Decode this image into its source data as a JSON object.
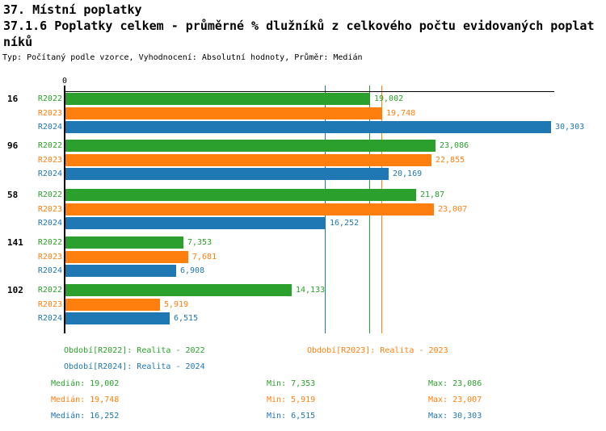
{
  "header": {
    "title_line1": "37. Místní poplatky",
    "title_line2": "37.1.6 Poplatky celkem - průměrné % dlužníků z celkového počtu evidovaných poplatníků",
    "subtitle": "Typ: Počítaný podle vzorce, Vyhodnocení: Absolutní hodnoty, Průměr: Medián"
  },
  "colors": {
    "series_green": "#2ca02c",
    "series_orange": "#ff7f0e",
    "series_blue": "#1f77b4",
    "axis": "#000000"
  },
  "chart_data": {
    "type": "bar",
    "orientation": "horizontal",
    "title": "37.1.6 Poplatky celkem - průměrné % dlužníků z celkového počtu evidovaných poplatníků",
    "series": [
      "R2022",
      "R2023",
      "R2024"
    ],
    "series_colors": [
      "#2ca02c",
      "#ff7f0e",
      "#1f77b4"
    ],
    "categories": [
      "16",
      "96",
      "58",
      "141",
      "102"
    ],
    "axis": {
      "origin_label": "0",
      "min": 0,
      "max": 30.56,
      "grid": false
    },
    "groups": [
      {
        "category": "16",
        "bars": [
          {
            "series": "R2022",
            "value": 19.002,
            "label": "19,002"
          },
          {
            "series": "R2023",
            "value": 19.748,
            "label": "19,748"
          },
          {
            "series": "R2024",
            "value": 30.303,
            "label": "30,303"
          }
        ]
      },
      {
        "category": "96",
        "bars": [
          {
            "series": "R2022",
            "value": 23.086,
            "label": "23,086"
          },
          {
            "series": "R2023",
            "value": 22.855,
            "label": "22,855"
          },
          {
            "series": "R2024",
            "value": 20.169,
            "label": "20,169"
          }
        ]
      },
      {
        "category": "58",
        "bars": [
          {
            "series": "R2022",
            "value": 21.87,
            "label": "21,87"
          },
          {
            "series": "R2023",
            "value": 23.007,
            "label": "23,007"
          },
          {
            "series": "R2024",
            "value": 16.252,
            "label": "16,252"
          }
        ]
      },
      {
        "category": "141",
        "bars": [
          {
            "series": "R2022",
            "value": 7.353,
            "label": "7,353"
          },
          {
            "series": "R2023",
            "value": 7.681,
            "label": "7,681"
          },
          {
            "series": "R2024",
            "value": 6.908,
            "label": "6,908"
          }
        ]
      },
      {
        "category": "102",
        "bars": [
          {
            "series": "R2022",
            "value": 14.133,
            "label": "14,133"
          },
          {
            "series": "R2023",
            "value": 5.919,
            "label": "5,919"
          },
          {
            "series": "R2024",
            "value": 6.515,
            "label": "6,515"
          }
        ]
      }
    ],
    "median_lines": [
      {
        "series": "R2022",
        "value": 19.002,
        "color": "#2ca02c"
      },
      {
        "series": "R2023",
        "value": 19.748,
        "color": "#ff7f0e"
      },
      {
        "series": "R2024",
        "value": 16.252,
        "color": "#1f77b4"
      }
    ]
  },
  "legend": {
    "items": [
      {
        "label": "Období[R2022]: Realita - 2022",
        "color": "#2ca02c",
        "row": 0,
        "col": 0
      },
      {
        "label": "Období[R2023]: Realita - 2023",
        "color": "#ff7f0e",
        "row": 0,
        "col": 1
      },
      {
        "label": "Období[R2024]: Realita - 2024",
        "color": "#1f77b4",
        "row": 1,
        "col": 0
      }
    ]
  },
  "stats": {
    "rows": [
      {
        "series": "R2022",
        "color": "#2ca02c",
        "median": "Medián: 19,002",
        "min": "Min: 7,353",
        "max": "Max: 23,086"
      },
      {
        "series": "R2023",
        "color": "#ff7f0e",
        "median": "Medián: 19,748",
        "min": "Min: 5,919",
        "max": "Max: 23,007"
      },
      {
        "series": "R2024",
        "color": "#1f77b4",
        "median": "Medián: 16,252",
        "min": "Min: 6,515",
        "max": "Max: 30,303"
      }
    ]
  }
}
